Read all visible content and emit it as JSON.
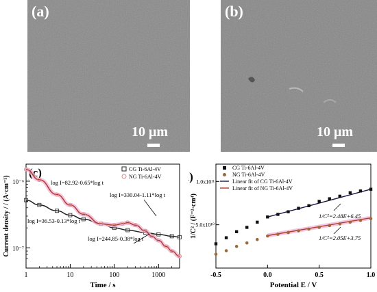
{
  "sem": {
    "a": {
      "label": "(a)",
      "scale": "10 μm"
    },
    "b": {
      "label": "(b)",
      "scale": "10 μm"
    }
  },
  "chart_data": [
    {
      "type": "line",
      "panel_label": "(c)",
      "xlabel": "Time / s",
      "ylabel": "Current density / / (A·cm⁻²)",
      "xscale": "log",
      "yscale": "log",
      "xlim": [
        1,
        3000
      ],
      "ylim": [
        5e-08,
        1.8e-06
      ],
      "x_ticks": [
        {
          "v": 1,
          "t": "1"
        },
        {
          "v": 10,
          "t": "10"
        },
        {
          "v": 100,
          "t": "100"
        },
        {
          "v": 1000,
          "t": "1000"
        }
      ],
      "y_ticks": [
        {
          "v": 1e-07,
          "t": "10⁻⁷"
        },
        {
          "v": 1e-06,
          "t": "10⁻⁶"
        }
      ],
      "legend": [
        {
          "name": "CG Ti-6Al-4V",
          "marker": "square",
          "color": "#222222"
        },
        {
          "name": "NG Ti-6Al-4V",
          "marker": "circle",
          "color": "#d98a8a"
        }
      ],
      "legend_position": "top-right",
      "series": [
        {
          "name": "CG Ti-6Al-4V",
          "color": "#222222",
          "marker": "square",
          "x": [
            1,
            2,
            5,
            10,
            20,
            50,
            100,
            200,
            500,
            1000,
            2000,
            3000
          ],
          "y": [
            5.2e-07,
            4.4e-07,
            3.6e-07,
            3.1e-07,
            2.7e-07,
            2.3e-07,
            2e-07,
            1.85e-07,
            1.7e-07,
            1.6e-07,
            1.5e-07,
            1.45e-07
          ]
        },
        {
          "name": "NG Ti-6Al-4V",
          "color": "#b03a2e",
          "marker": "circle",
          "x": [
            1,
            2,
            5,
            10,
            20,
            50,
            100,
            150,
            200,
            300,
            500,
            700,
            1000,
            1500,
            2000,
            3000
          ],
          "y": [
            1.5e-06,
            1.05e-06,
            6.3e-07,
            4.4e-07,
            3.2e-07,
            2.3e-07,
            2.2e-07,
            2.3e-07,
            2.4e-07,
            2.2e-07,
            1.8e-07,
            1.5e-07,
            1.3e-07,
            1.05e-07,
            9e-08,
            7.5e-08
          ]
        }
      ],
      "annotations": [
        {
          "text": "log I=82.92-0.65*log t"
        },
        {
          "text": "log I=330.04-1.11*log t"
        },
        {
          "text": "log I=36.53-0.13*log t"
        },
        {
          "text": "log I=244.85-0.38*log t"
        }
      ]
    },
    {
      "type": "scatter",
      "panel_label": "(d)",
      "xlabel": "Potential E / V",
      "ylabel": "1/C² / (F⁻²·cm⁴)",
      "xlim": [
        -0.5,
        1.0
      ],
      "ylim": [
        0,
        120000000000.0
      ],
      "x_ticks": [
        {
          "v": -0.5,
          "t": "-0.5"
        },
        {
          "v": 0.0,
          "t": "0.0"
        },
        {
          "v": 0.5,
          "t": "0.5"
        },
        {
          "v": 1.0,
          "t": "1.0"
        }
      ],
      "y_ticks": [
        {
          "v": 50000000000.0,
          "t": "5.0x10¹⁰"
        },
        {
          "v": 100000000000.0,
          "t": "1.0x10¹¹"
        }
      ],
      "legend": [
        {
          "name": "CG Ti-6Al-4V",
          "kind": "marker",
          "marker": "square",
          "color": "#111111"
        },
        {
          "name": "NG Ti-6Al-4V",
          "kind": "marker",
          "marker": "circle",
          "color": "#9a6a3a"
        },
        {
          "name": "Linear fit of  CG Ti-6Al-4V",
          "kind": "line",
          "color": "#1a1a4a"
        },
        {
          "name": "Linear fit of  NG Ti-6Al-4V",
          "kind": "line",
          "color": "#b03a2e"
        }
      ],
      "legend_position": "top-left",
      "series": [
        {
          "name": "CG Ti-6Al-4V",
          "color": "#111111",
          "marker": "square",
          "x": [
            -0.5,
            -0.4,
            -0.3,
            -0.2,
            -0.1,
            0.0,
            0.1,
            0.2,
            0.3,
            0.4,
            0.5,
            0.6,
            0.7,
            0.8,
            0.9,
            1.0
          ],
          "y": [
            28000000000.0,
            35000000000.0,
            42000000000.0,
            47000000000.0,
            53000000000.0,
            59000000000.0,
            62000000000.0,
            65000000000.0,
            69000000000.0,
            72000000000.0,
            77000000000.0,
            80000000000.0,
            83000000000.0,
            87000000000.0,
            89000000000.0,
            91000000000.0
          ]
        },
        {
          "name": "NG Ti-6Al-4V",
          "color": "#9a6a3a",
          "marker": "circle",
          "x": [
            -0.5,
            -0.4,
            -0.3,
            -0.2,
            -0.1,
            0.0,
            0.1,
            0.2,
            0.3,
            0.4,
            0.5,
            0.6,
            0.7,
            0.8,
            0.9,
            1.0
          ],
          "y": [
            16000000000.0,
            20000000000.0,
            25000000000.0,
            29000000000.0,
            33000000000.0,
            37000000000.0,
            39000000000.0,
            41000000000.0,
            43000000000.0,
            45000000000.0,
            47000000000.0,
            49000000000.0,
            51000000000.0,
            53000000000.0,
            55000000000.0,
            57000000000.0
          ]
        }
      ],
      "fits": [
        {
          "name": "Linear fit of  CG Ti-6Al-4V",
          "color": "#1a1a4a",
          "x": [
            0.0,
            1.0
          ],
          "y": [
            59000000000.0,
            91000000000.0
          ]
        },
        {
          "name": "Linear fit of  NG Ti-6Al-4V",
          "color": "#b03a2e",
          "x": [
            0.0,
            1.0
          ],
          "y": [
            37500000000.0,
            58000000000.0
          ]
        }
      ],
      "annotations": [
        {
          "text": "1/C²=2.48E+6.45"
        },
        {
          "text": "1/C²=2.05E+3.75"
        }
      ]
    }
  ]
}
